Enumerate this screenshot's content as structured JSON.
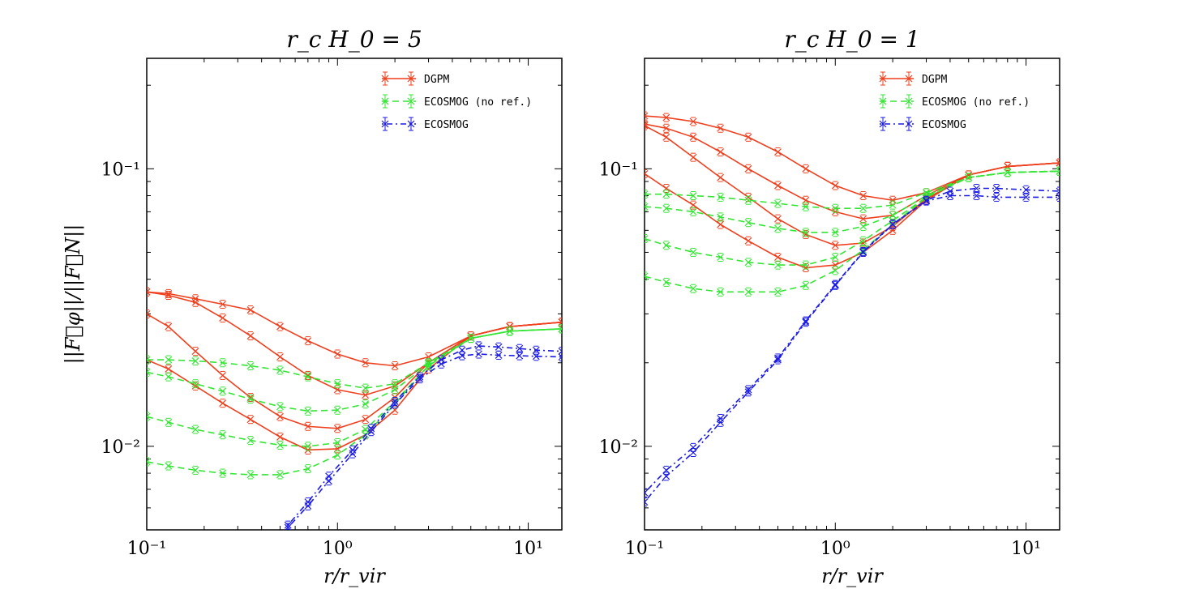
{
  "figure": {
    "ylabel": "||F⃗φ||/||F⃗N||"
  },
  "styles": {
    "DGPM": {
      "color": "#ef3f1d",
      "dash": "none"
    },
    "ECOSMOG (no ref.)": {
      "color": "#33e633",
      "dash": "8,5"
    },
    "ECOSMOG": {
      "color": "#1a1ae6",
      "dash": "2,4,7,4"
    }
  },
  "chart_data": [
    {
      "type": "line",
      "title": "r_c H_0 = 5",
      "xlabel": "r/r_vir",
      "ylabel": "||F⃗φ||/||F⃗N||",
      "xscale": "log",
      "yscale": "log",
      "xlim": [
        0.1,
        15
      ],
      "ylim": [
        0.005,
        0.25
      ],
      "xticks": [
        {
          "value": 0.1,
          "label": "10⁻¹"
        },
        {
          "value": 1,
          "label": "10⁰"
        },
        {
          "value": 10,
          "label": "10¹"
        }
      ],
      "yticks": [
        {
          "value": 0.01,
          "label": "10⁻²"
        },
        {
          "value": 0.1,
          "label": "10⁻¹"
        }
      ],
      "legend": [
        "DGPM",
        "ECOSMOG (no ref.)",
        "ECOSMOG"
      ],
      "legend_position": "top-right",
      "series": [
        {
          "name": "DGPM",
          "x": [
            0.1,
            0.13,
            0.18,
            0.25,
            0.35,
            0.5,
            0.7,
            1.0,
            1.4,
            2.0,
            3.0,
            5.0,
            8.0,
            15.0
          ],
          "y": [
            0.036,
            0.0355,
            0.034,
            0.0325,
            0.031,
            0.027,
            0.024,
            0.0215,
            0.02,
            0.0195,
            0.021,
            0.025,
            0.027,
            0.028
          ]
        },
        {
          "name": "DGPM",
          "x": [
            0.1,
            0.13,
            0.18,
            0.25,
            0.35,
            0.5,
            0.7,
            1.0,
            1.4,
            2.0,
            3.0,
            5.0,
            8.0,
            15.0
          ],
          "y": [
            0.036,
            0.035,
            0.033,
            0.029,
            0.025,
            0.021,
            0.018,
            0.016,
            0.0153,
            0.0165,
            0.02,
            0.025,
            0.027,
            0.028
          ]
        },
        {
          "name": "DGPM",
          "x": [
            0.1,
            0.13,
            0.18,
            0.25,
            0.35,
            0.5,
            0.7,
            1.0,
            1.4,
            2.0,
            3.0,
            5.0,
            8.0,
            15.0
          ],
          "y": [
            0.03,
            0.027,
            0.022,
            0.018,
            0.015,
            0.0128,
            0.0118,
            0.0116,
            0.0125,
            0.015,
            0.02,
            0.025,
            0.027,
            0.028
          ]
        },
        {
          "name": "DGPM",
          "x": [
            0.1,
            0.13,
            0.18,
            0.25,
            0.35,
            0.5,
            0.7,
            1.0,
            1.4,
            2.0,
            3.0,
            5.0,
            8.0,
            15.0
          ],
          "y": [
            0.0205,
            0.019,
            0.0165,
            0.0143,
            0.0125,
            0.0108,
            0.0097,
            0.0098,
            0.011,
            0.0135,
            0.019,
            0.025,
            0.027,
            0.028
          ]
        },
        {
          "name": "ECOSMOG (no ref.)",
          "x": [
            0.1,
            0.13,
            0.18,
            0.25,
            0.35,
            0.5,
            0.7,
            1.0,
            1.4,
            2.0,
            3.0,
            5.0,
            8.0,
            15.0
          ],
          "y": [
            0.0205,
            0.0205,
            0.0203,
            0.02,
            0.0195,
            0.0188,
            0.0178,
            0.0168,
            0.0162,
            0.0168,
            0.02,
            0.0245,
            0.026,
            0.0265
          ]
        },
        {
          "name": "ECOSMOG (no ref.)",
          "x": [
            0.1,
            0.13,
            0.18,
            0.25,
            0.35,
            0.5,
            0.7,
            1.0,
            1.4,
            2.0,
            3.0,
            5.0,
            8.0,
            15.0
          ],
          "y": [
            0.0185,
            0.0178,
            0.0168,
            0.0158,
            0.0148,
            0.0139,
            0.0134,
            0.0135,
            0.0142,
            0.016,
            0.0198,
            0.0245,
            0.026,
            0.0265
          ]
        },
        {
          "name": "ECOSMOG (no ref.)",
          "x": [
            0.1,
            0.13,
            0.18,
            0.25,
            0.35,
            0.5,
            0.7,
            1.0,
            1.4,
            2.0,
            3.0,
            5.0,
            8.0,
            15.0
          ],
          "y": [
            0.0128,
            0.0122,
            0.0115,
            0.011,
            0.0105,
            0.0101,
            0.01,
            0.0103,
            0.0115,
            0.0145,
            0.0195,
            0.0245,
            0.026,
            0.0265
          ]
        },
        {
          "name": "ECOSMOG (no ref.)",
          "x": [
            0.1,
            0.13,
            0.18,
            0.25,
            0.35,
            0.5,
            0.7,
            1.0,
            1.4,
            2.0,
            3.0,
            5.0,
            8.0,
            15.0
          ],
          "y": [
            0.0088,
            0.0085,
            0.0082,
            0.008,
            0.0079,
            0.0079,
            0.0083,
            0.0093,
            0.011,
            0.0142,
            0.0195,
            0.0245,
            0.026,
            0.0265
          ]
        },
        {
          "name": "ECOSMOG",
          "x": [
            0.55,
            0.7,
            0.9,
            1.2,
            1.5,
            2.0,
            2.7,
            3.5,
            4.5,
            5.5,
            7.0,
            9.0,
            11.0,
            15.0
          ],
          "y": [
            0.0052,
            0.0063,
            0.0078,
            0.0097,
            0.0116,
            0.0145,
            0.0178,
            0.0205,
            0.0222,
            0.023,
            0.0228,
            0.0225,
            0.0222,
            0.022
          ]
        },
        {
          "name": "ECOSMOG",
          "x": [
            0.55,
            0.7,
            0.9,
            1.2,
            1.5,
            2.0,
            2.7,
            3.5,
            4.5,
            5.5,
            7.0,
            9.0,
            11.0,
            15.0
          ],
          "y": [
            0.0051,
            0.0061,
            0.0075,
            0.0094,
            0.0113,
            0.0142,
            0.0175,
            0.0198,
            0.0212,
            0.0215,
            0.0213,
            0.0212,
            0.0211,
            0.021
          ]
        }
      ]
    },
    {
      "type": "line",
      "title": "r_c H_0 = 1",
      "xlabel": "r/r_vir",
      "ylabel": "||F⃗φ||/||F⃗N||",
      "xscale": "log",
      "yscale": "log",
      "xlim": [
        0.1,
        15
      ],
      "ylim": [
        0.005,
        0.25
      ],
      "xticks": [
        {
          "value": 0.1,
          "label": "10⁻¹"
        },
        {
          "value": 1,
          "label": "10⁰"
        },
        {
          "value": 10,
          "label": "10¹"
        }
      ],
      "yticks": [
        {
          "value": 0.01,
          "label": "10⁻²"
        },
        {
          "value": 0.1,
          "label": "10⁻¹"
        }
      ],
      "legend": [
        "DGPM",
        "ECOSMOG (no ref.)",
        "ECOSMOG"
      ],
      "legend_position": "top-right",
      "series": [
        {
          "name": "DGPM",
          "x": [
            0.1,
            0.13,
            0.18,
            0.25,
            0.35,
            0.5,
            0.7,
            1.0,
            1.4,
            2.0,
            3.0,
            5.0,
            8.0,
            15.0
          ],
          "y": [
            0.155,
            0.153,
            0.148,
            0.14,
            0.13,
            0.115,
            0.1,
            0.087,
            0.08,
            0.077,
            0.082,
            0.095,
            0.102,
            0.105
          ]
        },
        {
          "name": "DGPM",
          "x": [
            0.1,
            0.13,
            0.18,
            0.25,
            0.35,
            0.5,
            0.7,
            1.0,
            1.4,
            2.0,
            3.0,
            5.0,
            8.0,
            15.0
          ],
          "y": [
            0.145,
            0.14,
            0.13,
            0.115,
            0.1,
            0.087,
            0.077,
            0.07,
            0.066,
            0.068,
            0.08,
            0.095,
            0.102,
            0.105
          ]
        },
        {
          "name": "DGPM",
          "x": [
            0.1,
            0.13,
            0.18,
            0.25,
            0.35,
            0.5,
            0.7,
            1.0,
            1.4,
            2.0,
            3.0,
            5.0,
            8.0,
            15.0
          ],
          "y": [
            0.143,
            0.13,
            0.11,
            0.093,
            0.079,
            0.066,
            0.058,
            0.053,
            0.054,
            0.062,
            0.078,
            0.095,
            0.102,
            0.105
          ]
        },
        {
          "name": "DGPM",
          "x": [
            0.1,
            0.13,
            0.18,
            0.25,
            0.35,
            0.5,
            0.7,
            1.0,
            1.4,
            2.0,
            3.0,
            5.0,
            8.0,
            15.0
          ],
          "y": [
            0.096,
            0.085,
            0.074,
            0.063,
            0.055,
            0.048,
            0.044,
            0.045,
            0.05,
            0.06,
            0.077,
            0.095,
            0.102,
            0.105
          ]
        },
        {
          "name": "ECOSMOG (no ref.)",
          "x": [
            0.1,
            0.13,
            0.18,
            0.25,
            0.35,
            0.5,
            0.7,
            1.0,
            1.4,
            2.0,
            3.0,
            5.0,
            8.0,
            15.0
          ],
          "y": [
            0.081,
            0.081,
            0.08,
            0.079,
            0.077,
            0.075,
            0.073,
            0.072,
            0.072,
            0.074,
            0.082,
            0.093,
            0.097,
            0.098
          ]
        },
        {
          "name": "ECOSMOG (no ref.)",
          "x": [
            0.1,
            0.13,
            0.18,
            0.25,
            0.35,
            0.5,
            0.7,
            1.0,
            1.4,
            2.0,
            3.0,
            5.0,
            8.0,
            15.0
          ],
          "y": [
            0.073,
            0.072,
            0.07,
            0.067,
            0.064,
            0.061,
            0.059,
            0.059,
            0.062,
            0.068,
            0.08,
            0.093,
            0.097,
            0.098
          ]
        },
        {
          "name": "ECOSMOG (no ref.)",
          "x": [
            0.1,
            0.13,
            0.18,
            0.25,
            0.35,
            0.5,
            0.7,
            1.0,
            1.4,
            2.0,
            3.0,
            5.0,
            8.0,
            15.0
          ],
          "y": [
            0.056,
            0.053,
            0.05,
            0.048,
            0.046,
            0.045,
            0.045,
            0.048,
            0.055,
            0.065,
            0.079,
            0.093,
            0.097,
            0.098
          ]
        },
        {
          "name": "ECOSMOG (no ref.)",
          "x": [
            0.1,
            0.13,
            0.18,
            0.25,
            0.35,
            0.5,
            0.7,
            1.0,
            1.4,
            2.0,
            3.0,
            5.0,
            8.0,
            15.0
          ],
          "y": [
            0.041,
            0.039,
            0.037,
            0.036,
            0.036,
            0.036,
            0.038,
            0.043,
            0.051,
            0.063,
            0.079,
            0.093,
            0.097,
            0.098
          ]
        },
        {
          "name": "ECOSMOG",
          "x": [
            0.1,
            0.13,
            0.18,
            0.25,
            0.35,
            0.5,
            0.7,
            1.0,
            1.4,
            2.0,
            3.0,
            4.0,
            5.5,
            7.0,
            10.0,
            15.0
          ],
          "y": [
            0.0063,
            0.0078,
            0.0095,
            0.0122,
            0.0157,
            0.0205,
            0.028,
            0.038,
            0.05,
            0.063,
            0.077,
            0.083,
            0.085,
            0.085,
            0.084,
            0.083
          ]
        },
        {
          "name": "ECOSMOG",
          "x": [
            0.1,
            0.13,
            0.18,
            0.25,
            0.35,
            0.5,
            0.7,
            1.0,
            1.4,
            2.0,
            3.0,
            4.0,
            5.5,
            7.0,
            10.0,
            15.0
          ],
          "y": [
            0.0068,
            0.0082,
            0.0099,
            0.0126,
            0.016,
            0.0208,
            0.0283,
            0.0383,
            0.0503,
            0.0632,
            0.0765,
            0.08,
            0.08,
            0.079,
            0.079,
            0.079
          ]
        }
      ]
    }
  ]
}
